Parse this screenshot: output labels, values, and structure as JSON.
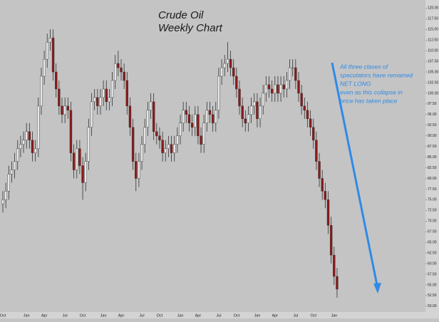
{
  "chart_data": {
    "type": "candlestick",
    "title": [
      "Crude Oil",
      "Weekly Chart"
    ],
    "annotation": [
      "All three clases of",
      "speculators have remained",
      "NET LONG",
      "even as this collapse in",
      "price has taken place"
    ],
    "categories": [
      "Oct",
      null,
      null,
      null,
      null,
      null,
      null,
      null,
      "Jan",
      null,
      null,
      null,
      null,
      null,
      "Apr",
      null,
      null,
      null,
      null,
      null,
      null,
      "Jul",
      null,
      null,
      null,
      null,
      null,
      "Oct",
      null,
      null,
      null,
      null,
      null,
      null,
      "Jan",
      null,
      null,
      null,
      null,
      null,
      "Apr",
      null,
      null,
      null,
      null,
      null,
      null,
      "Jul",
      null,
      null,
      null,
      null,
      null,
      "Oct",
      null,
      null,
      null,
      null,
      null,
      null,
      "Jan",
      null,
      null,
      null,
      null,
      null,
      "Apr",
      null,
      null,
      null,
      null,
      null,
      null,
      "Jul",
      null,
      null,
      null,
      null,
      null,
      "Oct",
      null,
      null,
      null,
      null,
      null,
      null,
      "Jan",
      null,
      null,
      null,
      null,
      null,
      "Apr",
      null,
      null,
      null,
      null,
      null,
      null,
      "Jul",
      null,
      null,
      null,
      null,
      null,
      "Oct",
      null,
      null,
      null,
      null,
      null,
      null,
      "Jan",
      null
    ],
    "open": [
      74,
      75,
      77,
      81,
      82,
      84,
      87,
      88,
      89,
      91,
      89,
      86,
      87,
      97,
      104,
      108,
      112,
      113,
      105,
      101,
      97,
      95,
      97,
      96,
      86,
      82,
      87,
      83,
      79,
      84,
      92,
      98,
      99,
      97,
      99,
      101,
      98,
      99,
      103,
      107,
      106,
      105,
      103,
      97,
      92,
      84,
      80,
      84,
      88,
      92,
      96,
      98,
      91,
      90,
      89,
      86,
      87,
      88,
      86,
      88,
      90,
      93,
      96,
      95,
      93,
      92,
      95,
      90,
      88,
      93,
      96,
      95,
      93,
      96,
      104,
      106,
      107,
      108,
      106,
      104,
      101,
      97,
      94,
      93,
      95,
      97,
      98,
      94,
      97,
      100,
      102,
      101,
      100,
      102,
      100,
      102,
      101,
      103,
      106,
      106,
      103,
      100,
      97,
      96,
      94,
      92,
      89,
      84,
      80,
      77,
      75,
      69,
      62,
      57
    ],
    "high": [
      77,
      79,
      83,
      84,
      86,
      89,
      90,
      91,
      93,
      93,
      91,
      89,
      99,
      106,
      110,
      114,
      115,
      115,
      107,
      103,
      99,
      99,
      99,
      98,
      88,
      89,
      89,
      85,
      86,
      94,
      100,
      101,
      101,
      101,
      103,
      103,
      101,
      105,
      109,
      110,
      108,
      107,
      105,
      99,
      94,
      86,
      86,
      90,
      94,
      98,
      100,
      100,
      93,
      92,
      91,
      89,
      90,
      90,
      90,
      92,
      95,
      98,
      98,
      97,
      95,
      97,
      97,
      92,
      95,
      98,
      98,
      97,
      98,
      106,
      108,
      109,
      112,
      110,
      108,
      106,
      103,
      99,
      96,
      97,
      99,
      100,
      100,
      99,
      102,
      104,
      104,
      103,
      104,
      104,
      104,
      104,
      105,
      108,
      108,
      108,
      105,
      102,
      99,
      98,
      96,
      94,
      91,
      86,
      82,
      79,
      77,
      71,
      64,
      59
    ],
    "low": [
      72,
      73,
      75,
      79,
      80,
      82,
      85,
      86,
      87,
      87,
      84,
      84,
      85,
      95,
      102,
      106,
      110,
      103,
      99,
      95,
      93,
      93,
      94,
      84,
      80,
      80,
      81,
      75,
      77,
      82,
      90,
      96,
      95,
      95,
      97,
      96,
      96,
      97,
      101,
      104,
      103,
      101,
      95,
      90,
      82,
      77,
      78,
      82,
      86,
      90,
      94,
      89,
      88,
      87,
      84,
      84,
      85,
      84,
      84,
      86,
      88,
      91,
      93,
      91,
      90,
      90,
      88,
      86,
      86,
      91,
      93,
      91,
      91,
      94,
      102,
      104,
      105,
      104,
      102,
      99,
      95,
      92,
      91,
      91,
      93,
      95,
      92,
      92,
      95,
      98,
      99,
      98,
      98,
      98,
      98,
      99,
      99,
      101,
      104,
      101,
      98,
      95,
      94,
      92,
      90,
      87,
      82,
      78,
      75,
      73,
      67,
      60,
      55,
      52
    ],
    "close": [
      75,
      77,
      81,
      82,
      84,
      87,
      88,
      89,
      91,
      89,
      86,
      87,
      97,
      104,
      108,
      112,
      113,
      105,
      101,
      97,
      95,
      97,
      96,
      86,
      82,
      87,
      83,
      79,
      84,
      92,
      98,
      99,
      97,
      99,
      101,
      98,
      99,
      103,
      107,
      106,
      105,
      103,
      97,
      92,
      84,
      80,
      84,
      88,
      92,
      96,
      98,
      91,
      90,
      89,
      86,
      87,
      88,
      86,
      88,
      90,
      93,
      96,
      95,
      93,
      92,
      95,
      90,
      88,
      93,
      96,
      95,
      93,
      96,
      104,
      106,
      107,
      108,
      106,
      104,
      101,
      97,
      94,
      93,
      95,
      97,
      98,
      94,
      97,
      100,
      102,
      101,
      100,
      102,
      100,
      102,
      101,
      103,
      106,
      106,
      103,
      100,
      97,
      96,
      94,
      92,
      89,
      84,
      80,
      77,
      75,
      69,
      62,
      57,
      54
    ],
    "up_color": "#e8e8e8",
    "down_color": "#8b1a1a",
    "ylim": [
      48.3,
      121.9
    ],
    "yticks": [
      {
        "value": 50,
        "label": "50.00"
      },
      {
        "value": 52.5,
        "label": "52.50"
      },
      {
        "value": 55,
        "label": "55.00"
      },
      {
        "value": 57.5,
        "label": "57.50"
      },
      {
        "value": 60,
        "label": "60.00"
      },
      {
        "value": 62.5,
        "label": "62.50"
      },
      {
        "value": 65,
        "label": "65.00"
      },
      {
        "value": 67.5,
        "label": "67.50"
      },
      {
        "value": 70,
        "label": "70.00"
      },
      {
        "value": 72.5,
        "label": "72.50"
      },
      {
        "value": 75,
        "label": "75.00"
      },
      {
        "value": 77.5,
        "label": "77.50"
      },
      {
        "value": 80,
        "label": "80.00"
      },
      {
        "value": 82.5,
        "label": "82.50"
      },
      {
        "value": 85,
        "label": "85.00"
      },
      {
        "value": 87.5,
        "label": "87.50"
      },
      {
        "value": 90,
        "label": "90.00"
      },
      {
        "value": 92.5,
        "label": "92.50"
      },
      {
        "value": 95,
        "label": "95.00"
      },
      {
        "value": 97.5,
        "label": "97.50"
      },
      {
        "value": 100,
        "label": "100.00"
      },
      {
        "value": 102.5,
        "label": "102.50"
      },
      {
        "value": 105,
        "label": "105.00"
      },
      {
        "value": 107.5,
        "label": "107.50"
      },
      {
        "value": 110,
        "label": "110.00"
      },
      {
        "value": 112.5,
        "label": "112.50"
      },
      {
        "value": 115,
        "label": "115.00"
      },
      {
        "value": 117.5,
        "label": "117.50"
      },
      {
        "value": 120,
        "label": "120.00"
      }
    ]
  }
}
